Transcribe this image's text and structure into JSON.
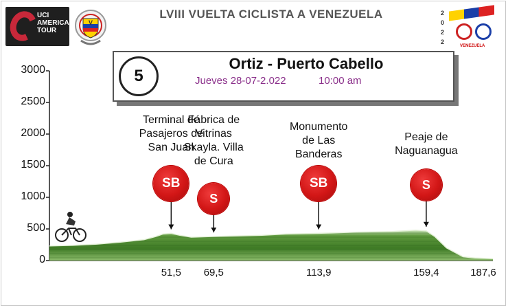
{
  "header": {
    "title": "LVIII VUELTA CICLISTA A VENEZUELA",
    "uci_logo": [
      "UCI",
      "AMERICA",
      "TOUR"
    ]
  },
  "vcv_logo": {
    "digits": [
      "2",
      "0",
      "2",
      "2"
    ],
    "caption": "VENEZUELA"
  },
  "stage": {
    "number": "5",
    "route": "Ortiz - Puerto Cabello",
    "date": "Jueves 28-07-2.022",
    "time": "10:00 am"
  },
  "chart_data": {
    "type": "area",
    "title": "",
    "xlabel": "",
    "ylabel": "",
    "ylim": [
      0,
      3000
    ],
    "xlim": [
      0,
      187.6
    ],
    "yticks": [
      "3000",
      "2500",
      "2000",
      "1500",
      "1000",
      "500",
      "0"
    ],
    "xticks": [
      "51,5",
      "69,5",
      "113,9",
      "159,4",
      "187,6"
    ],
    "profile": {
      "x": [
        0,
        10,
        20,
        30,
        40,
        45,
        48,
        51.5,
        55,
        60,
        69.5,
        80,
        90,
        100,
        113.9,
        130,
        145,
        155,
        159.4,
        163,
        168,
        175,
        180,
        187.6
      ],
      "y": [
        230,
        240,
        260,
        290,
        330,
        380,
        420,
        430,
        400,
        370,
        380,
        390,
        400,
        420,
        430,
        450,
        460,
        480,
        470,
        380,
        200,
        60,
        40,
        30
      ]
    },
    "points": [
      {
        "km": 51.5,
        "tick": "51,5",
        "badge": "SB",
        "label": [
          "Terminal de",
          "Pasajeros de",
          "San Juan"
        ]
      },
      {
        "km": 69.5,
        "tick": "69,5",
        "badge": "S",
        "label": [
          "Fábrica de",
          "Vitrinas",
          "Skayla. Villa",
          "de Cura"
        ]
      },
      {
        "km": 113.9,
        "tick": "113,9",
        "badge": "SB",
        "label": [
          "Monumento",
          "de Las",
          "Banderas"
        ]
      },
      {
        "km": 159.4,
        "tick": "159,4",
        "badge": "S",
        "label": [
          "Peaje de",
          "Naguanagua"
        ]
      }
    ],
    "colors": {
      "terrain_dark": "#2f6b1c",
      "terrain_light": "#9ac77a",
      "marker": "#d21616"
    },
    "grid": false
  }
}
